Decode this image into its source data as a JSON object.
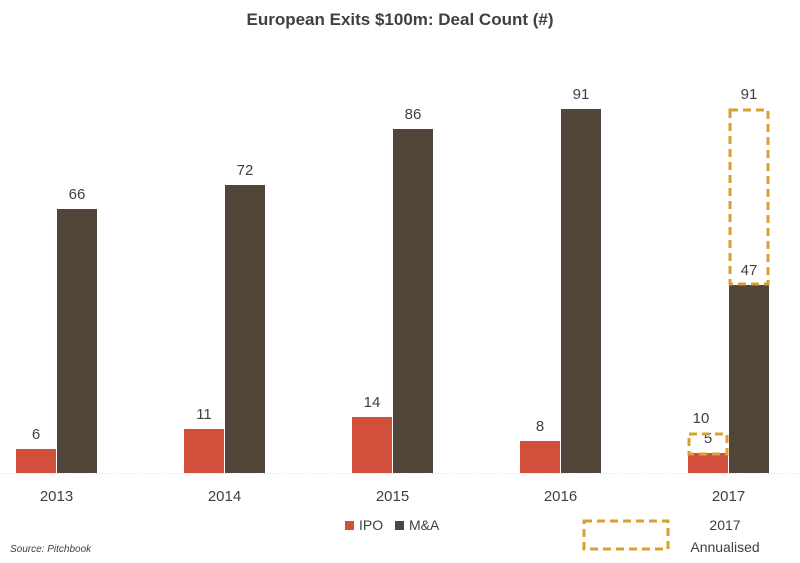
{
  "chart_data": {
    "type": "bar",
    "title": "European Exits $100m: Deal Count (#)",
    "categories": [
      "2013",
      "2014",
      "2015",
      "2016",
      "2017"
    ],
    "series": [
      {
        "name": "IPO",
        "color": "#D24F3B",
        "values": [
          6,
          11,
          14,
          8,
          5
        ]
      },
      {
        "name": "M&A",
        "color": "#514537",
        "values": [
          66,
          72,
          86,
          91,
          47
        ]
      }
    ],
    "annualised": {
      "category": "2017",
      "IPO": 10,
      "M&A": 91,
      "legend_label": "2017 Annualised",
      "legend_label_lines": [
        "2017",
        "Annualised"
      ],
      "color": "#D9A02F"
    },
    "ylim": [
      0,
      100
    ],
    "grid": false,
    "legend_position": "bottom",
    "source": "Source: Pitchbook"
  }
}
